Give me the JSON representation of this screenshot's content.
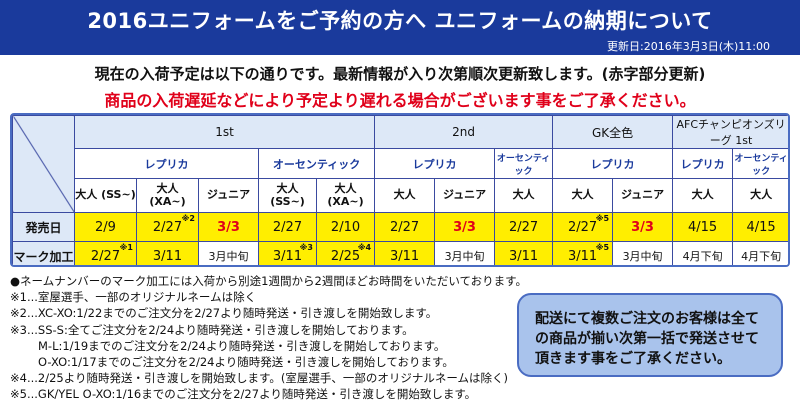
{
  "header": {
    "title": "2016ユニフォームをご予約の方へ ユニフォームの納期について",
    "updated": "更新日:2016年3月3日(木)11:00"
  },
  "intro": "現在の入荷予定は以下の通りです。最新情報が入り次第順次更新致します。(赤字部分更新)",
  "warning": "商品の入荷遅延などにより予定より遅れる場合がございます事をご了承ください。",
  "table": {
    "groups": [
      "1st",
      "2nd",
      "GK全色",
      "AFCチャンピオンズリーグ 1st"
    ],
    "subgroups": [
      "レプリカ",
      "オーセンティック",
      "レプリカ",
      "オーセンティック",
      "レプリカ",
      "レプリカ",
      "オーセンティック"
    ],
    "variants": [
      "大人 (SS~)",
      "大人 (XA~)",
      "ジュニア",
      "大人 (SS~)",
      "大人 (XA~)",
      "大人",
      "ジュニア",
      "大人",
      "大人",
      "ジュニア",
      "大人",
      "大人"
    ],
    "row_labels": [
      "発売日",
      "マーク加工"
    ],
    "release": [
      "2/9",
      "2/27",
      "3/3",
      "2/27",
      "2/10",
      "2/27",
      "3/3",
      "2/27",
      "2/27",
      "3/3",
      "4/15",
      "4/15"
    ],
    "mark": [
      "2/27",
      "3/11",
      "3月中旬",
      "3/11",
      "2/25",
      "3/11",
      "3月中旬",
      "3/11",
      "3/11",
      "3月中旬",
      "4月下旬",
      "4月下旬"
    ],
    "refs": {
      "release_2": "※2",
      "release_9": "※5",
      "mark_1": "※1",
      "mark_4": "※3",
      "mark_5": "※4",
      "mark_9": "※5"
    }
  },
  "notes": [
    "●ネームナンバーのマーク加工には入荷から別途1週間から2週間ほどお時間をいただいております。",
    "※1...室屋選手、一部のオリジナルネームは除く",
    "※2...XC-XO:1/22までのご注文分を2/27より随時発送・引き渡しを開始致します。",
    "※3...SS-S:全てご注文分を2/24より随時発送・引き渡しを開始しております。",
    "M-L:1/19までのご注文分を2/24より随時発送・引き渡しを開始しております。",
    "O-XO:1/17までのご注文分を2/24より随時発送・引き渡しを開始しております。",
    "※4...2/25より随時発送・引き渡しを開始致します。(室屋選手、一部のオリジナルネームは除く)",
    "※5...GK/YEL O-XO:1/16までのご注文分を2/27より随時発送・引き渡しを開始致します。"
  ],
  "notice": {
    "line1": "配送にて複数ご注文のお客様は全て",
    "line2": "の商品が揃い次第一括で発送させて",
    "line3": "頂きます事をご了承ください。"
  },
  "colors": {
    "header_bg": "#1a3a9c",
    "highlight_yellow": "#ffee00",
    "red_text": "#e0001a",
    "table_header_bg": "#dde8f7",
    "notice_bg": "#a9c3ec"
  }
}
